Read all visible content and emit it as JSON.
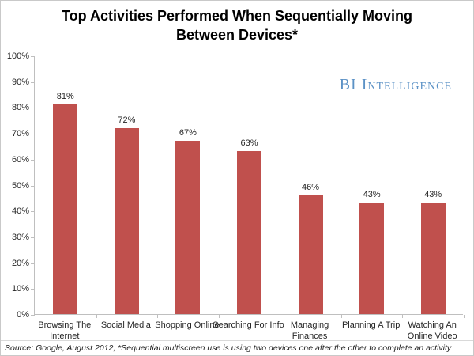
{
  "header": {
    "title_lines": [
      "Top Activities Performed When Sequentially Moving",
      "Between Devices*"
    ]
  },
  "watermark": {
    "text": "BI Intelligence",
    "color": "#5c92c6"
  },
  "footer": {
    "source": "Source: Google, August 2012, *Sequential multiscreen use is using two devices one after the other to complete an activity"
  },
  "chart_data": {
    "type": "bar",
    "title": "Top Activities Performed When Sequentially Moving Between Devices*",
    "categories": [
      "Browsing The Internet",
      "Social Media",
      "Shopping Online",
      "Searching For Info",
      "Managing Finances",
      "Planning A Trip",
      "Watching An Online Video"
    ],
    "tick_labels": [
      "Browsing The\nInternet",
      "Social Media",
      "Shopping Online",
      "Searching For Info",
      "Managing\nFinances",
      "Planning A Trip",
      "Watching An\nOnline Video"
    ],
    "values": [
      81,
      72,
      67,
      63,
      46,
      43,
      43
    ],
    "value_labels": [
      "81%",
      "72%",
      "67%",
      "63%",
      "46%",
      "43%",
      "43%"
    ],
    "xlabel": "",
    "ylabel": "",
    "ylim": [
      0,
      100
    ],
    "y_tick_step": 10,
    "y_tick_labels": [
      "0%",
      "10%",
      "20%",
      "30%",
      "40%",
      "50%",
      "60%",
      "70%",
      "80%",
      "90%",
      "100%"
    ],
    "grid": false,
    "legend": false,
    "bar_color": "#c0504d",
    "axis_color": "#bfbfbf"
  }
}
